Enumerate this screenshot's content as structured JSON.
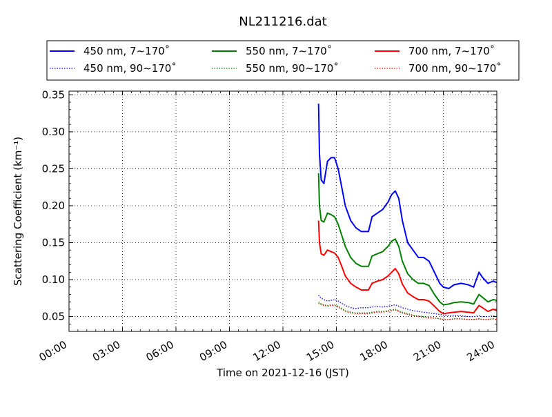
{
  "chart_data": {
    "type": "line",
    "title": "NL211216.dat",
    "xlabel": "Time on 2021-12-16 (JST)",
    "ylabel": "Scattering Coefficient (km⁻¹)",
    "xlim": [
      0,
      24
    ],
    "ylim": [
      0.03,
      0.355
    ],
    "grid": true,
    "legend_position": "top",
    "x_ticks": [
      {
        "value": 0,
        "label": "00:00"
      },
      {
        "value": 3,
        "label": "03:00"
      },
      {
        "value": 6,
        "label": "06:00"
      },
      {
        "value": 9,
        "label": "09:00"
      },
      {
        "value": 12,
        "label": "12:00"
      },
      {
        "value": 15,
        "label": "15:00"
      },
      {
        "value": 18,
        "label": "18:00"
      },
      {
        "value": 21,
        "label": "21:00"
      },
      {
        "value": 24,
        "label": "24:00"
      }
    ],
    "y_ticks": [
      {
        "value": 0.05,
        "label": "0.05"
      },
      {
        "value": 0.1,
        "label": "0.10"
      },
      {
        "value": 0.15,
        "label": "0.15"
      },
      {
        "value": 0.2,
        "label": "0.20"
      },
      {
        "value": 0.25,
        "label": "0.25"
      },
      {
        "value": 0.3,
        "label": "0.30"
      },
      {
        "value": 0.35,
        "label": "0.35"
      }
    ],
    "x": [
      14.0,
      14.05,
      14.15,
      14.3,
      14.5,
      14.7,
      14.9,
      15.1,
      15.3,
      15.5,
      15.8,
      16.1,
      16.4,
      16.8,
      17.0,
      17.3,
      17.6,
      17.9,
      18.1,
      18.3,
      18.5,
      18.7,
      19.0,
      19.3,
      19.6,
      19.9,
      20.2,
      20.5,
      20.8,
      21.0,
      21.3,
      21.6,
      22.0,
      22.4,
      22.7,
      23.0,
      23.2,
      23.5,
      23.8,
      24.0
    ],
    "series": [
      {
        "name": "450 nm, 7∼170˚",
        "color": "#0000ff",
        "dash": "solid",
        "values": [
          0.338,
          0.27,
          0.235,
          0.23,
          0.26,
          0.265,
          0.265,
          0.25,
          0.225,
          0.2,
          0.18,
          0.17,
          0.165,
          0.165,
          0.185,
          0.19,
          0.195,
          0.205,
          0.215,
          0.22,
          0.21,
          0.18,
          0.15,
          0.14,
          0.13,
          0.13,
          0.125,
          0.11,
          0.095,
          0.09,
          0.088,
          0.093,
          0.095,
          0.093,
          0.09,
          0.11,
          0.103,
          0.095,
          0.098,
          0.096
        ]
      },
      {
        "name": "450 nm, 90∼170˚",
        "color": "#0000ff",
        "dash": "dotted",
        "values": [
          0.079,
          0.077,
          0.075,
          0.073,
          0.071,
          0.072,
          0.073,
          0.071,
          0.068,
          0.065,
          0.062,
          0.061,
          0.062,
          0.062,
          0.063,
          0.064,
          0.063,
          0.064,
          0.065,
          0.066,
          0.064,
          0.062,
          0.06,
          0.058,
          0.057,
          0.056,
          0.055,
          0.054,
          0.053,
          0.052,
          0.051,
          0.052,
          0.051,
          0.05,
          0.05,
          0.051,
          0.05,
          0.05,
          0.051,
          0.05
        ]
      },
      {
        "name": "550 nm, 7∼170˚",
        "color": "#008000",
        "dash": "solid",
        "values": [
          0.244,
          0.2,
          0.18,
          0.178,
          0.19,
          0.188,
          0.185,
          0.175,
          0.16,
          0.145,
          0.13,
          0.122,
          0.118,
          0.118,
          0.132,
          0.135,
          0.138,
          0.145,
          0.152,
          0.155,
          0.145,
          0.125,
          0.108,
          0.1,
          0.095,
          0.095,
          0.092,
          0.08,
          0.07,
          0.066,
          0.067,
          0.069,
          0.07,
          0.069,
          0.067,
          0.08,
          0.076,
          0.07,
          0.073,
          0.072
        ]
      },
      {
        "name": "550 nm, 90∼170˚",
        "color": "#008000",
        "dash": "dotted",
        "values": [
          0.07,
          0.069,
          0.067,
          0.066,
          0.065,
          0.066,
          0.066,
          0.064,
          0.061,
          0.058,
          0.056,
          0.055,
          0.055,
          0.055,
          0.056,
          0.057,
          0.057,
          0.058,
          0.059,
          0.06,
          0.058,
          0.056,
          0.054,
          0.052,
          0.051,
          0.05,
          0.049,
          0.048,
          0.047,
          0.046,
          0.046,
          0.047,
          0.047,
          0.046,
          0.046,
          0.047,
          0.046,
          0.046,
          0.047,
          0.046
        ]
      },
      {
        "name": "700 nm, 7∼170˚",
        "color": "#ff0000",
        "dash": "solid",
        "values": [
          0.18,
          0.15,
          0.135,
          0.133,
          0.14,
          0.138,
          0.136,
          0.13,
          0.118,
          0.105,
          0.095,
          0.09,
          0.086,
          0.086,
          0.095,
          0.098,
          0.1,
          0.105,
          0.11,
          0.115,
          0.108,
          0.094,
          0.082,
          0.077,
          0.073,
          0.073,
          0.071,
          0.064,
          0.057,
          0.054,
          0.055,
          0.056,
          0.057,
          0.056,
          0.055,
          0.065,
          0.062,
          0.057,
          0.06,
          0.058
        ]
      },
      {
        "name": "700 nm, 90∼170˚",
        "color": "#ff0000",
        "dash": "dotted",
        "values": [
          0.068,
          0.067,
          0.066,
          0.065,
          0.064,
          0.065,
          0.065,
          0.063,
          0.06,
          0.057,
          0.055,
          0.054,
          0.054,
          0.054,
          0.055,
          0.056,
          0.056,
          0.057,
          0.058,
          0.059,
          0.057,
          0.055,
          0.053,
          0.051,
          0.05,
          0.049,
          0.048,
          0.048,
          0.047,
          0.046,
          0.046,
          0.047,
          0.047,
          0.046,
          0.046,
          0.047,
          0.046,
          0.046,
          0.047,
          0.046
        ]
      }
    ]
  }
}
